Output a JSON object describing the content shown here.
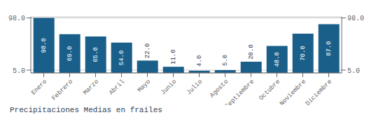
{
  "chart_data": {
    "type": "bar",
    "title": "Precipitaciones Medias en frailes",
    "categories": [
      "Enero",
      "Febrero",
      "Marzo",
      "Abril",
      "Mayo",
      "Junio",
      "Julio",
      "Agosto",
      "Septiembre",
      "Octubre",
      "Noviembre",
      "Diciembre"
    ],
    "values": [
      98.0,
      69.0,
      65.0,
      54.0,
      22.0,
      11.0,
      4.0,
      5.0,
      20.0,
      48.0,
      70.0,
      87.0
    ],
    "value_labels": [
      "98.0",
      "69.0",
      "65.0",
      "54.0",
      "22.0",
      "11.0",
      "4.0",
      "5.0",
      "20.0",
      "48.0",
      "70.0",
      "87.0"
    ],
    "data_labels": true,
    "color": "#1a5f8a",
    "ylim": [
      0,
      100
    ],
    "yticks": [
      {
        "value": 5,
        "label": "5.0"
      },
      {
        "value": 98,
        "label": "98.0"
      }
    ],
    "y2lim": [
      0,
      100
    ],
    "y2ticks": [
      {
        "value": 5,
        "label": "5.0"
      },
      {
        "value": 98,
        "label": "98.0"
      }
    ],
    "grid": true
  }
}
